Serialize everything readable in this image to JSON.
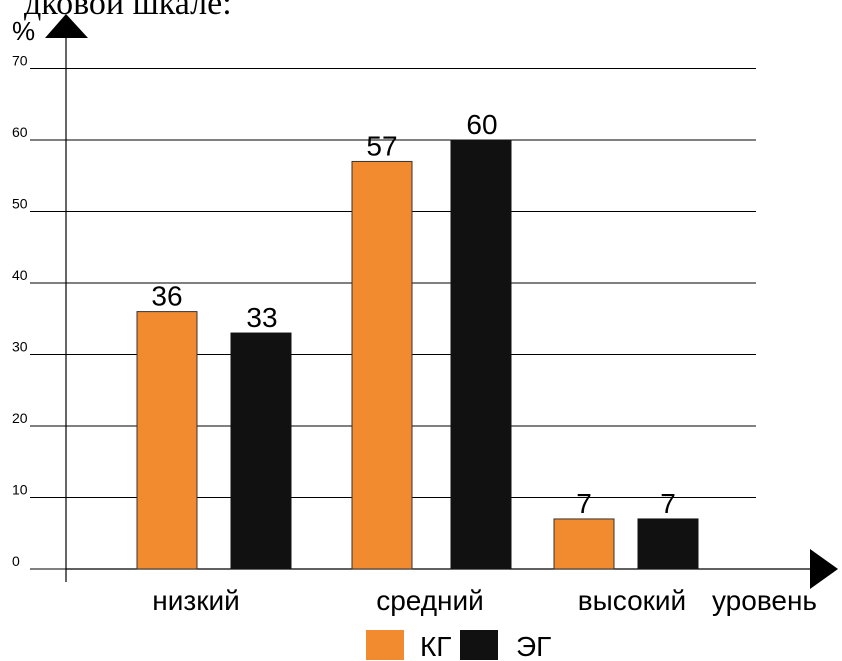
{
  "page": {
    "top_text": "дковой шкале:"
  },
  "chart_data": {
    "type": "bar",
    "categories": [
      "низкий",
      "средний",
      "высокий"
    ],
    "series": [
      {
        "name": "КГ",
        "values": [
          36,
          57,
          7
        ],
        "color": "#f28a30"
      },
      {
        "name": "ЭГ",
        "values": [
          33,
          60,
          7
        ],
        "color": "#111111"
      }
    ],
    "ylabel": "%",
    "xlabel": "уровень",
    "ylim": [
      0,
      70
    ],
    "yticks": [
      "0",
      "10",
      "20",
      "30",
      "40",
      "50",
      "60",
      "70"
    ],
    "data_labels": [
      [
        "36",
        "33"
      ],
      [
        "57",
        "60"
      ],
      [
        "7",
        "7"
      ]
    ],
    "grid": true,
    "legend_position": "bottom"
  }
}
